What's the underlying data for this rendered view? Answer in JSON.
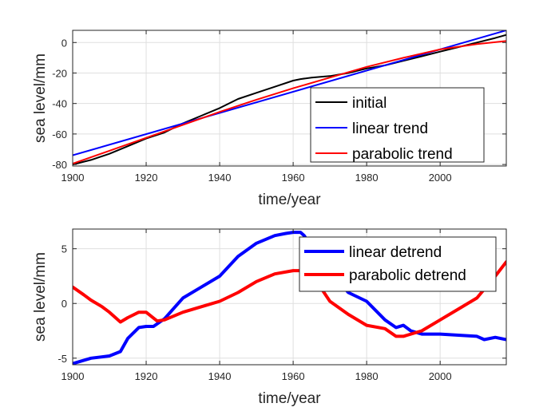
{
  "chart_data": [
    {
      "type": "line",
      "xlabel": "time/year",
      "ylabel": "sea level/mm",
      "xlim": [
        1900,
        2018
      ],
      "ylim": [
        -81,
        8
      ],
      "xticks": [
        1900,
        1920,
        1940,
        1960,
        1980,
        2000
      ],
      "yticks": [
        -80,
        -60,
        -40,
        -20,
        0
      ],
      "grid": true,
      "legend_position": "bottom-right",
      "series": [
        {
          "name": "initial",
          "color": "#000000",
          "x": [
            1900,
            1905,
            1910,
            1915,
            1920,
            1925,
            1930,
            1935,
            1940,
            1945,
            1950,
            1955,
            1960,
            1962,
            1965,
            1970,
            1975,
            1980,
            1985,
            1990,
            1995,
            2000,
            2005,
            2010,
            2015,
            2018
          ],
          "y": [
            -80,
            -77,
            -73,
            -68,
            -63,
            -59,
            -53,
            -48,
            -43,
            -37,
            -33,
            -29,
            -25,
            -24,
            -23,
            -22,
            -20,
            -17,
            -15,
            -12,
            -9,
            -6,
            -3,
            0,
            3,
            5
          ]
        },
        {
          "name": "linear trend",
          "color": "#0000ff",
          "x": [
            1900,
            2018
          ],
          "y": [
            -74,
            8
          ]
        },
        {
          "name": "parabolic trend",
          "color": "#ff0000",
          "x": [
            1900,
            1910,
            1920,
            1930,
            1940,
            1950,
            1960,
            1970,
            1980,
            1990,
            2000,
            2010,
            2018
          ],
          "y": [
            -79.5,
            -71,
            -62.5,
            -54,
            -45.5,
            -37.5,
            -30,
            -23,
            -16,
            -10,
            -4.5,
            -1,
            1
          ]
        }
      ]
    },
    {
      "type": "line",
      "xlabel": "time/year",
      "ylabel": "sea level/mm",
      "xlim": [
        1900,
        2018
      ],
      "ylim": [
        -5.6,
        6.8
      ],
      "xticks": [
        1900,
        1920,
        1940,
        1960,
        1980,
        2000
      ],
      "yticks": [
        -5,
        0,
        5
      ],
      "grid": true,
      "legend_position": "top-right",
      "series": [
        {
          "name": "linear detrend",
          "color": "#0000ff",
          "x": [
            1900,
            1905,
            1910,
            1913,
            1915,
            1918,
            1920,
            1922,
            1925,
            1930,
            1935,
            1940,
            1945,
            1950,
            1955,
            1958,
            1960,
            1962,
            1963,
            1965,
            1968,
            1970,
            1975,
            1980,
            1985,
            1988,
            1990,
            1992,
            1995,
            2000,
            2005,
            2010,
            2012,
            2015,
            2018
          ],
          "y": [
            -5.5,
            -5.0,
            -4.8,
            -4.4,
            -3.2,
            -2.2,
            -2.1,
            -2.1,
            -1.4,
            0.5,
            1.5,
            2.5,
            4.3,
            5.5,
            6.2,
            6.4,
            6.5,
            6.5,
            6.2,
            5.2,
            4.2,
            3.0,
            1.0,
            0.2,
            -1.5,
            -2.2,
            -2.0,
            -2.5,
            -2.8,
            -2.8,
            -2.9,
            -3.0,
            -3.3,
            -3.1,
            -3.3
          ]
        },
        {
          "name": "parabolic detrend",
          "color": "#ff0000",
          "x": [
            1900,
            1903,
            1905,
            1908,
            1910,
            1913,
            1915,
            1918,
            1920,
            1923,
            1925,
            1930,
            1935,
            1940,
            1945,
            1950,
            1955,
            1960,
            1963,
            1965,
            1968,
            1970,
            1975,
            1980,
            1985,
            1988,
            1990,
            1995,
            2000,
            2005,
            2010,
            2015,
            2018
          ],
          "y": [
            1.5,
            0.8,
            0.3,
            -0.3,
            -0.8,
            -1.7,
            -1.3,
            -0.8,
            -0.8,
            -1.6,
            -1.5,
            -0.8,
            -0.3,
            0.2,
            1.0,
            2.0,
            2.7,
            3.0,
            3.0,
            2.5,
            1.2,
            0.2,
            -1.0,
            -2.0,
            -2.3,
            -3.0,
            -3.0,
            -2.5,
            -1.5,
            -0.5,
            0.5,
            2.5,
            3.8
          ]
        }
      ]
    }
  ]
}
